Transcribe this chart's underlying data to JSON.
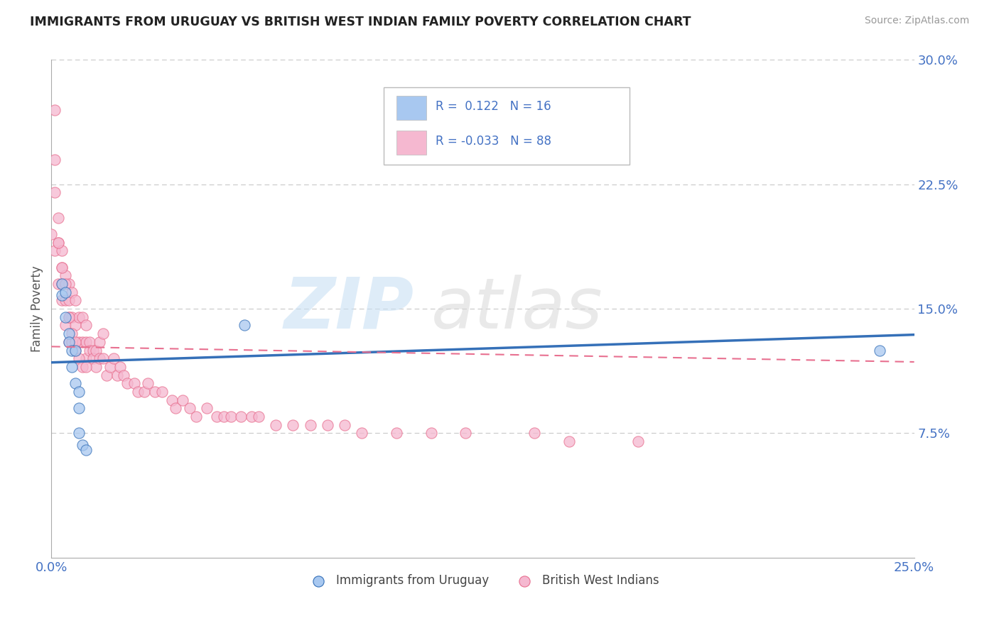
{
  "title": "IMMIGRANTS FROM URUGUAY VS BRITISH WEST INDIAN FAMILY POVERTY CORRELATION CHART",
  "source": "Source: ZipAtlas.com",
  "ylabel": "Family Poverty",
  "xmin": 0.0,
  "xmax": 0.25,
  "ymin": 0.0,
  "ymax": 0.3,
  "color_uruguay": "#a8c8f0",
  "color_bwi": "#f5b8d0",
  "color_line_uruguay": "#3570b8",
  "color_line_bwi": "#e87090",
  "color_text": "#4472c4",
  "color_title": "#222222",
  "uruguay_x": [
    0.003,
    0.003,
    0.004,
    0.004,
    0.005,
    0.005,
    0.006,
    0.006,
    0.007,
    0.007,
    0.008,
    0.008,
    0.008,
    0.009,
    0.01,
    0.056,
    0.24
  ],
  "uruguay_y": [
    0.165,
    0.158,
    0.16,
    0.145,
    0.135,
    0.13,
    0.125,
    0.115,
    0.125,
    0.105,
    0.1,
    0.09,
    0.075,
    0.068,
    0.065,
    0.14,
    0.125
  ],
  "bwi_x": [
    0.0,
    0.001,
    0.001,
    0.001,
    0.002,
    0.002,
    0.002,
    0.003,
    0.003,
    0.003,
    0.003,
    0.004,
    0.004,
    0.004,
    0.005,
    0.005,
    0.005,
    0.005,
    0.006,
    0.006,
    0.006,
    0.007,
    0.007,
    0.007,
    0.008,
    0.008,
    0.009,
    0.009,
    0.01,
    0.01,
    0.01,
    0.011,
    0.011,
    0.012,
    0.012,
    0.013,
    0.013,
    0.014,
    0.014,
    0.015,
    0.015,
    0.016,
    0.017,
    0.018,
    0.019,
    0.02,
    0.021,
    0.022,
    0.024,
    0.025,
    0.027,
    0.028,
    0.03,
    0.032,
    0.035,
    0.036,
    0.038,
    0.04,
    0.042,
    0.045,
    0.048,
    0.05,
    0.052,
    0.055,
    0.058,
    0.06,
    0.065,
    0.07,
    0.075,
    0.08,
    0.085,
    0.09,
    0.1,
    0.11,
    0.12,
    0.14,
    0.15,
    0.17,
    0.001,
    0.002,
    0.003,
    0.004,
    0.005,
    0.006,
    0.007,
    0.008,
    0.009,
    0.01
  ],
  "bwi_y": [
    0.195,
    0.24,
    0.22,
    0.185,
    0.205,
    0.19,
    0.165,
    0.185,
    0.175,
    0.165,
    0.155,
    0.17,
    0.155,
    0.14,
    0.165,
    0.155,
    0.145,
    0.13,
    0.16,
    0.145,
    0.13,
    0.155,
    0.14,
    0.125,
    0.145,
    0.13,
    0.145,
    0.13,
    0.14,
    0.13,
    0.12,
    0.13,
    0.125,
    0.125,
    0.12,
    0.125,
    0.115,
    0.13,
    0.12,
    0.135,
    0.12,
    0.11,
    0.115,
    0.12,
    0.11,
    0.115,
    0.11,
    0.105,
    0.105,
    0.1,
    0.1,
    0.105,
    0.1,
    0.1,
    0.095,
    0.09,
    0.095,
    0.09,
    0.085,
    0.09,
    0.085,
    0.085,
    0.085,
    0.085,
    0.085,
    0.085,
    0.08,
    0.08,
    0.08,
    0.08,
    0.08,
    0.075,
    0.075,
    0.075,
    0.075,
    0.075,
    0.07,
    0.07,
    0.27,
    0.19,
    0.175,
    0.165,
    0.145,
    0.135,
    0.13,
    0.12,
    0.115,
    0.115
  ]
}
